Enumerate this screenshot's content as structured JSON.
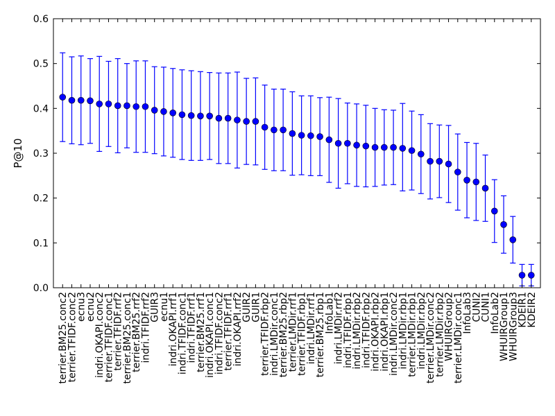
{
  "chart_data": {
    "type": "scatter",
    "title": "",
    "xlabel": "",
    "ylabel": "P@10",
    "ylim": [
      0,
      0.6
    ],
    "yticks": [
      0.0,
      0.1,
      0.2,
      0.3,
      0.4,
      0.5,
      0.6
    ],
    "ytick_labels": [
      "0.0",
      "0.1",
      "0.2",
      "0.3",
      "0.4",
      "0.5",
      "0.6"
    ],
    "color": "#0000ff",
    "series": [
      {
        "name": "P@10 (mean with error bars)",
        "categories": [
          "terrier.BM25.conc2",
          "terrier.TFIDF.conc2",
          "ecnu3",
          "ecnu2",
          "indri.OKAPI.conc2",
          "terrier.TFIDF.conc1",
          "terrier.TFIDF.rrf2",
          "terrier.BM25.conc1",
          "terrier.BM25.rrf2",
          "indri.TFIDF.rrf2",
          "GUIR3",
          "ecnu1",
          "indri.OKAPI.rrf1",
          "indri.TFIDF.conc1",
          "indri.TFIDF.rrf1",
          "terrier.BM25.rrf1",
          "indri.OKAPI.conc1",
          "indri.TFIDF.conc2",
          "terrier.TFIDF.rrf1",
          "indri.OKAPI.rrf2",
          "GUIR2",
          "GUIR1",
          "terrier.TFIDF.rbp2",
          "indri.LMDir.conc1",
          "terrier.BM25.rbp2",
          "terrier.LMDir.rrf1",
          "terrier.TFIDF.rbp1",
          "indri.LMDir.rrf1",
          "terrier.BM25.rbp1",
          "InfoLab1",
          "indri.LMDir.rrf2",
          "indri.TFIDF.rbp1",
          "indri.LMDir.rbp2",
          "indri.TFIDF.rbp2",
          "indri.OKAPI.rbp2",
          "indri.OKAPI.rbp1",
          "indri.LMDir.conc2",
          "indri.LMDir.rbp1",
          "terrier.LMDir.rbp1",
          "indri.LMDir.rbp2",
          "terrier.LMDir.conc2",
          "terrier.LMDir.rbp2",
          "WHUIRGroup2",
          "terrier.LMDir.conc1",
          "InfoLab3",
          "CUNI2",
          "CUNI1",
          "InfoLab2",
          "WHUIRGroup1",
          "WHUIRGroup3",
          "KDEIR1",
          "KDEIR2"
        ],
        "values": [
          0.425,
          0.418,
          0.418,
          0.417,
          0.41,
          0.41,
          0.406,
          0.406,
          0.404,
          0.404,
          0.396,
          0.393,
          0.39,
          0.386,
          0.384,
          0.383,
          0.383,
          0.378,
          0.378,
          0.374,
          0.371,
          0.371,
          0.358,
          0.352,
          0.352,
          0.344,
          0.34,
          0.339,
          0.337,
          0.33,
          0.322,
          0.322,
          0.318,
          0.316,
          0.313,
          0.313,
          0.313,
          0.311,
          0.306,
          0.298,
          0.282,
          0.282,
          0.276,
          0.258,
          0.24,
          0.236,
          0.222,
          0.171,
          0.141,
          0.107,
          0.028,
          0.028
        ],
        "lower": [
          0.326,
          0.321,
          0.319,
          0.322,
          0.304,
          0.315,
          0.301,
          0.312,
          0.302,
          0.302,
          0.299,
          0.294,
          0.291,
          0.286,
          0.284,
          0.284,
          0.286,
          0.277,
          0.277,
          0.267,
          0.275,
          0.274,
          0.264,
          0.261,
          0.261,
          0.251,
          0.252,
          0.25,
          0.25,
          0.235,
          0.222,
          0.232,
          0.226,
          0.225,
          0.226,
          0.229,
          0.23,
          0.216,
          0.218,
          0.21,
          0.198,
          0.201,
          0.19,
          0.173,
          0.156,
          0.15,
          0.148,
          0.101,
          0.077,
          0.055,
          0.004,
          0.004
        ],
        "upper": [
          0.524,
          0.515,
          0.517,
          0.511,
          0.516,
          0.505,
          0.511,
          0.5,
          0.506,
          0.506,
          0.493,
          0.492,
          0.489,
          0.486,
          0.484,
          0.482,
          0.48,
          0.479,
          0.479,
          0.481,
          0.467,
          0.468,
          0.452,
          0.443,
          0.443,
          0.437,
          0.428,
          0.428,
          0.424,
          0.425,
          0.422,
          0.412,
          0.41,
          0.407,
          0.4,
          0.397,
          0.396,
          0.411,
          0.394,
          0.386,
          0.366,
          0.363,
          0.362,
          0.343,
          0.324,
          0.322,
          0.296,
          0.241,
          0.205,
          0.159,
          0.052,
          0.052
        ]
      }
    ]
  }
}
